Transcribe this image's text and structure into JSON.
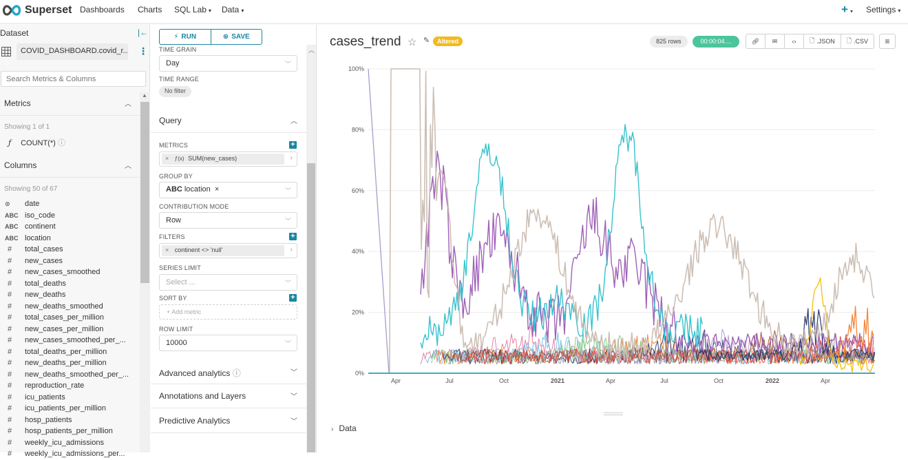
{
  "nav": {
    "brand": "Superset",
    "items": [
      "Dashboards",
      "Charts",
      "SQL Lab",
      "Data"
    ],
    "plus": "+",
    "settings": "Settings"
  },
  "dataset": {
    "title": "Dataset",
    "name": "COVID_DASHBOARD.covid_r...",
    "search_placeholder": "Search Metrics & Columns",
    "metrics_label": "Metrics",
    "metrics_showing": "Showing 1 of 1",
    "metric": "COUNT(*)",
    "columns_label": "Columns",
    "columns_showing": "Showing 50 of 67",
    "columns": [
      {
        "type": "time",
        "name": "date"
      },
      {
        "type": "ABC",
        "name": "iso_code"
      },
      {
        "type": "ABC",
        "name": "continent"
      },
      {
        "type": "ABC",
        "name": "location"
      },
      {
        "type": "#",
        "name": "total_cases"
      },
      {
        "type": "#",
        "name": "new_cases"
      },
      {
        "type": "#",
        "name": "new_cases_smoothed"
      },
      {
        "type": "#",
        "name": "total_deaths"
      },
      {
        "type": "#",
        "name": "new_deaths"
      },
      {
        "type": "#",
        "name": "new_deaths_smoothed"
      },
      {
        "type": "#",
        "name": "total_cases_per_million"
      },
      {
        "type": "#",
        "name": "new_cases_per_million"
      },
      {
        "type": "#",
        "name": "new_cases_smoothed_per_..."
      },
      {
        "type": "#",
        "name": "total_deaths_per_million"
      },
      {
        "type": "#",
        "name": "new_deaths_per_million"
      },
      {
        "type": "#",
        "name": "new_deaths_smoothed_per_..."
      },
      {
        "type": "#",
        "name": "reproduction_rate"
      },
      {
        "type": "#",
        "name": "icu_patients"
      },
      {
        "type": "#",
        "name": "icu_patients_per_million"
      },
      {
        "type": "#",
        "name": "hosp_patients"
      },
      {
        "type": "#",
        "name": "hosp_patients_per_million"
      },
      {
        "type": "#",
        "name": "weekly_icu_admissions"
      },
      {
        "type": "#",
        "name": "weekly_icu_admissions_per..."
      }
    ]
  },
  "controls": {
    "run": "RUN",
    "save": "SAVE",
    "time_grain_label": "TIME GRAIN",
    "time_grain": "Day",
    "time_range_label": "TIME RANGE",
    "time_range": "No filter",
    "query_label": "Query",
    "metrics_label": "METRICS",
    "metric_value": "SUM(new_cases)",
    "metric_prefix": "ƒ(x)",
    "group_by_label": "GROUP BY",
    "group_by_type": "ABC",
    "group_by_value": "location",
    "contribution_label": "CONTRIBUTION MODE",
    "contribution_value": "Row",
    "filters_label": "FILTERS",
    "filter_value": "continent <> 'null'",
    "series_limit_label": "SERIES LIMIT",
    "series_limit_placeholder": "Select ...",
    "sort_by_label": "SORT BY",
    "add_metric": "Add metric",
    "row_limit_label": "ROW LIMIT",
    "row_limit": "10000",
    "advanced": "Advanced analytics",
    "annotations": "Annotations and Layers",
    "predictive": "Predictive Analytics"
  },
  "chart": {
    "title": "cases_trend",
    "altered": "Altered",
    "rows": "825 rows",
    "time": "00:00:04....",
    "actions": [
      ".JSON",
      ".CSV"
    ],
    "data_toggle": "Data"
  },
  "chart_data": {
    "type": "line",
    "y_ticks": [
      "100%",
      "80%",
      "60%",
      "40%",
      "20%",
      "0%"
    ],
    "x_ticks": [
      "Apr",
      "Jul",
      "Oct",
      "2021",
      "Apr",
      "Jul",
      "Oct",
      "2022",
      "Apr"
    ],
    "ylim": [
      0,
      1
    ],
    "grid": true,
    "colors": {
      "beige": "#c9bcb1",
      "teal": "#2bbfca",
      "purple": "#9a57b3",
      "navy": "#2d3a6b",
      "orange": "#f57c2b",
      "yellow": "#f7bf0c",
      "pink": "#e57a9c",
      "lightblue": "#6fc0e8",
      "lavender": "#a99cc9",
      "red": "#e04343",
      "green": "#7fc97f",
      "grey": "#999999",
      "brown": "#a0522d"
    }
  }
}
